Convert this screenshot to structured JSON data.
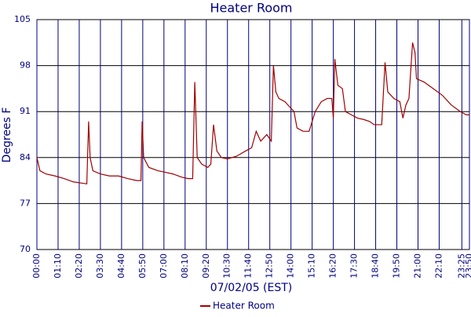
{
  "chart_data": {
    "type": "line",
    "title": "Heater Room",
    "x_label": "07/02/05 (EST)",
    "y_label": "Degrees F",
    "xlim": [
      0,
      1430
    ],
    "ylim": [
      70,
      105
    ],
    "yticks": [
      70,
      77,
      84,
      91,
      98,
      105
    ],
    "xticks": [
      {
        "value": 0,
        "label": "00:00"
      },
      {
        "value": 70,
        "label": "01:10"
      },
      {
        "value": 140,
        "label": "02:20"
      },
      {
        "value": 210,
        "label": "03:30"
      },
      {
        "value": 280,
        "label": "04:40"
      },
      {
        "value": 350,
        "label": "05:50"
      },
      {
        "value": 420,
        "label": "07:00"
      },
      {
        "value": 490,
        "label": "08:10"
      },
      {
        "value": 560,
        "label": "09:20"
      },
      {
        "value": 630,
        "label": "10:30"
      },
      {
        "value": 700,
        "label": "11:40"
      },
      {
        "value": 770,
        "label": "12:50"
      },
      {
        "value": 840,
        "label": "14:00"
      },
      {
        "value": 910,
        "label": "15:10"
      },
      {
        "value": 980,
        "label": "16:20"
      },
      {
        "value": 1050,
        "label": "17:30"
      },
      {
        "value": 1120,
        "label": "18:40"
      },
      {
        "value": 1190,
        "label": "19:50"
      },
      {
        "value": 1260,
        "label": "21:00"
      },
      {
        "value": 1330,
        "label": "22:10"
      },
      {
        "value": 1405,
        "label": "23:25"
      },
      {
        "value": 1430,
        "label": "23:50"
      }
    ],
    "grid": true,
    "legend": "bottom",
    "x": [
      0,
      10,
      30,
      60,
      90,
      120,
      150,
      165,
      171,
      176,
      185,
      210,
      240,
      270,
      300,
      330,
      344,
      348,
      353,
      370,
      400,
      420,
      450,
      480,
      500,
      515,
      522,
      530,
      545,
      565,
      575,
      584,
      595,
      610,
      630,
      660,
      690,
      710,
      725,
      740,
      760,
      775,
      782,
      790,
      800,
      820,
      840,
      850,
      860,
      880,
      900,
      920,
      940,
      960,
      975,
      980,
      985,
      995,
      1010,
      1020,
      1040,
      1060,
      1080,
      1100,
      1115,
      1140,
      1151,
      1160,
      1180,
      1200,
      1210,
      1220,
      1230,
      1242,
      1250,
      1255,
      1280,
      1310,
      1340,
      1370,
      1400,
      1420,
      1430
    ],
    "series": [
      {
        "name": "Heater Room",
        "color": "#a00000",
        "values": [
          84,
          82,
          81.5,
          81.2,
          80.8,
          80.3,
          80.1,
          80,
          89.5,
          84,
          82,
          81.5,
          81.2,
          81.2,
          80.8,
          80.5,
          80.5,
          89.5,
          84,
          82.5,
          82,
          81.8,
          81.5,
          81,
          80.8,
          80.8,
          95.5,
          84,
          83,
          82.5,
          83,
          89,
          85,
          84,
          83.8,
          84.2,
          85,
          85.5,
          88,
          86.5,
          87.5,
          86.5,
          98,
          94,
          93,
          92.5,
          91.5,
          91,
          88.5,
          88,
          88,
          91,
          92.5,
          93,
          93,
          90,
          99,
          95,
          94.5,
          91,
          90.5,
          90,
          89.8,
          89.5,
          89,
          89,
          98.5,
          94,
          93,
          92.5,
          90,
          92,
          93,
          101.5,
          100,
          96,
          95.5,
          94.5,
          93.5,
          92,
          91,
          90.5,
          90.5
        ]
      }
    ]
  }
}
